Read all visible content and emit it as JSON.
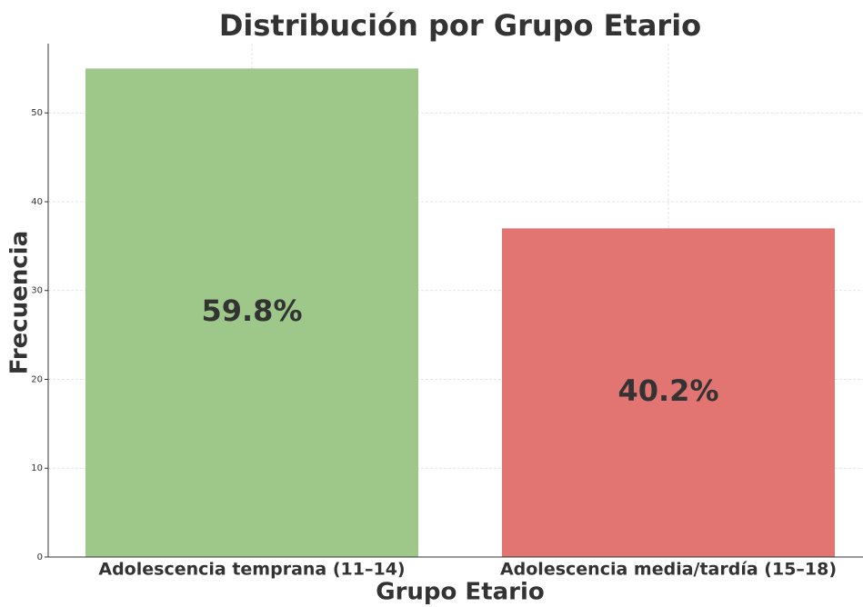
{
  "chart_data": {
    "type": "bar",
    "title": "Distribución por Grupo Etario",
    "x_label": "Grupo Etario",
    "y_label": "Frecuencia",
    "categories": [
      "Adolescencia temprana (11–14)",
      "Adolescencia media/tardía (15–18)"
    ],
    "values": [
      55,
      37
    ],
    "annotations": [
      "59.8%",
      "40.2%"
    ],
    "colors": [
      "#9dc88a",
      "#e27472"
    ],
    "ylim": [
      0,
      57.8
    ],
    "yticks": [
      0,
      10,
      20,
      30,
      40,
      50
    ],
    "grid": true
  }
}
